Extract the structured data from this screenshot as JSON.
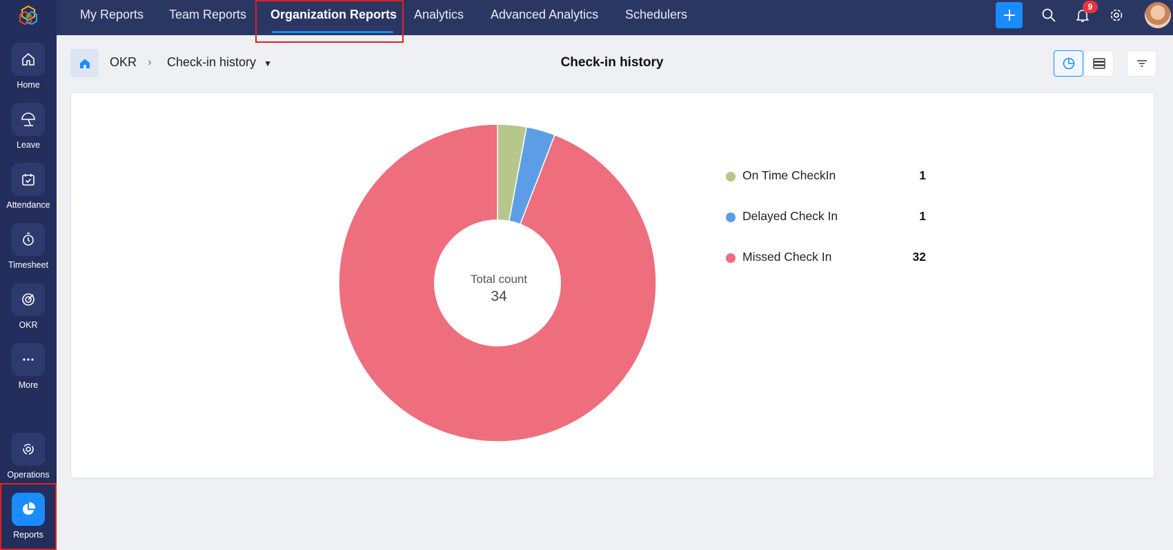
{
  "sidebar": {
    "items": [
      {
        "label": "Home",
        "icon": "home-icon"
      },
      {
        "label": "Leave",
        "icon": "umbrella-icon"
      },
      {
        "label": "Attendance",
        "icon": "calendar-check-icon"
      },
      {
        "label": "Timesheet",
        "icon": "stopwatch-icon"
      },
      {
        "label": "OKR",
        "icon": "target-icon"
      },
      {
        "label": "More",
        "icon": "more-dots-icon"
      }
    ],
    "bottom_items": [
      {
        "label": "Operations",
        "icon": "operations-icon"
      },
      {
        "label": "Reports",
        "icon": "pie-chart-icon",
        "active": true
      }
    ]
  },
  "topnav": {
    "tabs": [
      {
        "label": "My Reports"
      },
      {
        "label": "Team Reports"
      },
      {
        "label": "Organization Reports",
        "active": true
      },
      {
        "label": "Analytics"
      },
      {
        "label": "Advanced Analytics"
      },
      {
        "label": "Schedulers"
      }
    ],
    "notification_count": "9",
    "accent_color": "#1a8cff"
  },
  "breadcrumb": {
    "module": "OKR",
    "report": "Check-in history"
  },
  "page": {
    "title": "Check-in history"
  },
  "chart_data": {
    "type": "pie",
    "center_label": "Total count",
    "center_value": "34",
    "series": [
      {
        "name": "On Time CheckIn",
        "value": 1,
        "color": "#b7c68b"
      },
      {
        "name": "Delayed Check In",
        "value": 1,
        "color": "#5b9ee6"
      },
      {
        "name": "Missed Check In",
        "value": 32,
        "color": "#ee6e7e"
      }
    ],
    "legend_position": "right"
  }
}
